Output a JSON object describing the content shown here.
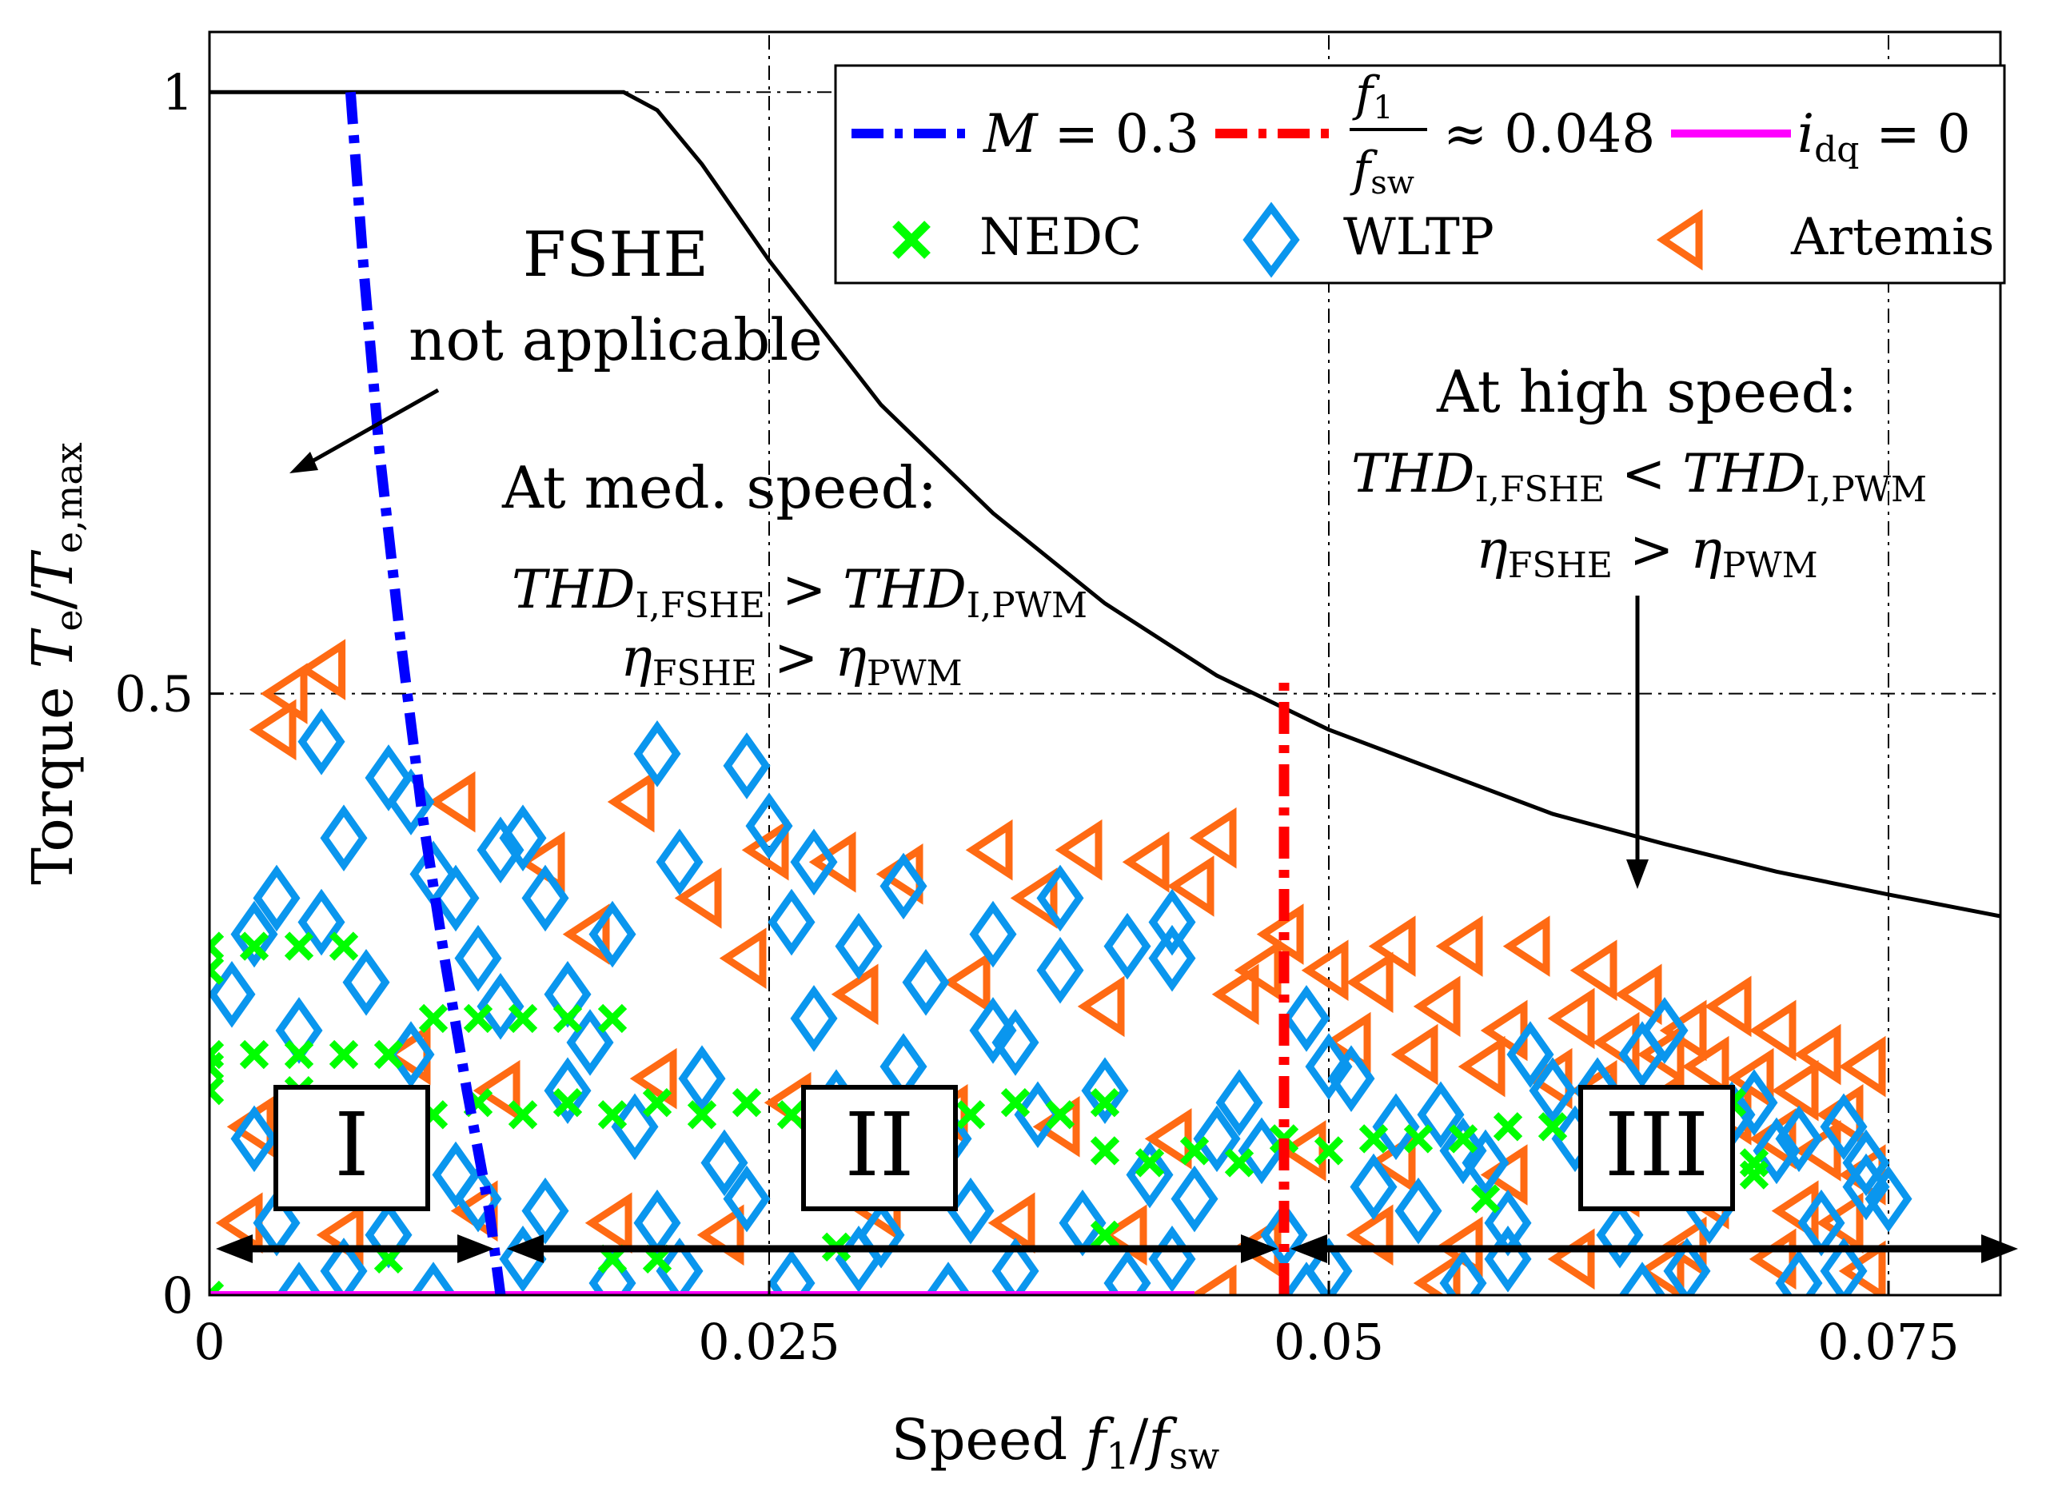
{
  "chart_data": {
    "type": "scatter",
    "xlabel_prefix": "Speed",
    "xlabel_symbol": "f",
    "xlabel_sub1": "1",
    "xlabel_slash": "/",
    "xlabel_sub2": "sw",
    "ylabel_prefix": "Torque",
    "ylabel_symbol_1": "T",
    "ylabel_sub_1": "e",
    "ylabel_slash": "/",
    "ylabel_symbol_2": "T",
    "ylabel_sub_2": "e,max",
    "xlim": [
      0,
      0.08
    ],
    "ylim": [
      0,
      1.05
    ],
    "xticks": [
      0,
      0.025,
      0.05,
      0.075
    ],
    "xtick_labels": [
      "0",
      "0.025",
      "0.05",
      "0.075"
    ],
    "yticks": [
      0,
      0.5,
      1
    ],
    "ytick_labels": [
      "0",
      "0.5",
      "1"
    ],
    "grid": true,
    "max_torque_curve": {
      "name": "max torque",
      "color": "#000000",
      "x": [
        0,
        0.005,
        0.01,
        0.015,
        0.0185,
        0.02,
        0.022,
        0.025,
        0.03,
        0.035,
        0.04,
        0.045,
        0.05,
        0.055,
        0.06,
        0.065,
        0.07,
        0.075,
        0.08
      ],
      "y": [
        1,
        1,
        1,
        1,
        1,
        0.985,
        0.94,
        0.86,
        0.74,
        0.65,
        0.575,
        0.515,
        0.47,
        0.435,
        0.4,
        0.375,
        0.352,
        0.333,
        0.315
      ]
    },
    "series": [
      {
        "name": "M = 0.3",
        "style": "dash-dot",
        "color": "#0000ff",
        "x": [
          0.0063,
          0.0069,
          0.0076,
          0.0085,
          0.0095,
          0.0105,
          0.0115,
          0.0125,
          0.013
        ],
        "y": [
          1.0,
          0.85,
          0.7,
          0.55,
          0.4,
          0.28,
          0.17,
          0.07,
          0.0
        ]
      },
      {
        "name": "f1/fsw ≈ 0.048",
        "style": "dash-dot",
        "color": "#ff0000",
        "x": [
          0.048,
          0.048
        ],
        "y": [
          0.0,
          0.51
        ]
      },
      {
        "name": "i_dq = 0",
        "style": "solid",
        "color": "#ff00ff",
        "x": [
          0.0,
          0.044
        ],
        "y": [
          0.0,
          0.0
        ]
      },
      {
        "name": "NEDC",
        "marker": "x",
        "color": "#00ff00",
        "x": [
          0.0,
          0.0,
          0.0,
          0.002,
          0.004,
          0.006,
          0.0,
          0.002,
          0.004,
          0.006,
          0.008,
          0.01,
          0.012,
          0.014,
          0.016,
          0.018,
          0.0,
          0.004,
          0.008,
          0.012,
          0.016,
          0.02,
          0.024,
          0.028,
          0.032,
          0.036,
          0.04,
          0.01,
          0.014,
          0.018,
          0.022,
          0.026,
          0.03,
          0.034,
          0.038,
          0.04,
          0.044,
          0.048,
          0.052,
          0.056,
          0.06,
          0.064,
          0.068,
          0.042,
          0.046,
          0.05,
          0.054,
          0.058,
          0.062,
          0.066,
          0.069,
          0.057,
          0.069,
          0.028,
          0.04,
          0.008,
          0.018,
          0.02,
          0.0
        ],
        "y": [
          0.29,
          0.27,
          0.19,
          0.29,
          0.29,
          0.29,
          0.2,
          0.2,
          0.2,
          0.2,
          0.2,
          0.23,
          0.23,
          0.23,
          0.23,
          0.23,
          0.17,
          0.17,
          0.16,
          0.16,
          0.16,
          0.16,
          0.16,
          0.16,
          0.16,
          0.16,
          0.16,
          0.15,
          0.15,
          0.15,
          0.15,
          0.15,
          0.15,
          0.15,
          0.15,
          0.12,
          0.12,
          0.13,
          0.13,
          0.13,
          0.14,
          0.15,
          0.16,
          0.11,
          0.11,
          0.12,
          0.13,
          0.14,
          0.14,
          0.15,
          0.1,
          0.08,
          0.11,
          0.04,
          0.05,
          0.03,
          0.03,
          0.03,
          0.0
        ]
      },
      {
        "name": "WLTP",
        "marker": "diamond",
        "color": "#0a96ee",
        "x": [
          0.005,
          0.008,
          0.006,
          0.009,
          0.01,
          0.013,
          0.014,
          0.011,
          0.02,
          0.024,
          0.025,
          0.003,
          0.002,
          0.005,
          0.007,
          0.012,
          0.015,
          0.018,
          0.021,
          0.026,
          0.029,
          0.032,
          0.035,
          0.038,
          0.041,
          0.043,
          0.046,
          0.049,
          0.05,
          0.053,
          0.056,
          0.059,
          0.062,
          0.065,
          0.068,
          0.071,
          0.074,
          0.001,
          0.004,
          0.009,
          0.013,
          0.017,
          0.022,
          0.027,
          0.031,
          0.036,
          0.04,
          0.045,
          0.051,
          0.055,
          0.06,
          0.064,
          0.069,
          0.073,
          0.002,
          0.007,
          0.011,
          0.016,
          0.019,
          0.023,
          0.028,
          0.033,
          0.037,
          0.042,
          0.047,
          0.052,
          0.057,
          0.061,
          0.066,
          0.07,
          0.075,
          0.003,
          0.008,
          0.012,
          0.015,
          0.02,
          0.024,
          0.03,
          0.034,
          0.039,
          0.044,
          0.048,
          0.054,
          0.058,
          0.063,
          0.067,
          0.072,
          0.074,
          0.006,
          0.014,
          0.021,
          0.029,
          0.036,
          0.043,
          0.05,
          0.058,
          0.066,
          0.073,
          0.004,
          0.01,
          0.018,
          0.026,
          0.033,
          0.041,
          0.049,
          0.056,
          0.064,
          0.071,
          0.043,
          0.031,
          0.027,
          0.016,
          0.038,
          0.035
        ],
        "y": [
          0.46,
          0.43,
          0.38,
          0.41,
          0.35,
          0.37,
          0.38,
          0.33,
          0.45,
          0.44,
          0.39,
          0.33,
          0.3,
          0.31,
          0.26,
          0.28,
          0.33,
          0.3,
          0.36,
          0.31,
          0.29,
          0.26,
          0.22,
          0.27,
          0.29,
          0.28,
          0.16,
          0.23,
          0.19,
          0.14,
          0.12,
          0.2,
          0.17,
          0.22,
          0.15,
          0.13,
          0.11,
          0.25,
          0.22,
          0.2,
          0.24,
          0.21,
          0.18,
          0.23,
          0.19,
          0.21,
          0.17,
          0.13,
          0.18,
          0.15,
          0.17,
          0.2,
          0.16,
          0.14,
          0.13,
          0.14,
          0.1,
          0.17,
          0.14,
          0.11,
          0.16,
          0.13,
          0.15,
          0.1,
          0.12,
          0.09,
          0.11,
          0.13,
          0.1,
          0.12,
          0.08,
          0.06,
          0.05,
          0.08,
          0.07,
          0.06,
          0.08,
          0.05,
          0.07,
          0.06,
          0.08,
          0.05,
          0.07,
          0.06,
          0.05,
          0.07,
          0.06,
          0.09,
          0.02,
          0.03,
          0.02,
          0.03,
          0.02,
          0.03,
          0.02,
          0.03,
          0.02,
          0.02,
          0.0,
          0.0,
          0.01,
          0.01,
          0.0,
          0.01,
          0.0,
          0.01,
          0.0,
          0.01,
          0.31,
          0.34,
          0.36,
          0.25,
          0.33,
          0.3
        ]
      },
      {
        "name": "Artemis",
        "marker": "triangle-left",
        "color": "#ff6a13",
        "x": [
          0.0035,
          0.0052,
          0.003,
          0.011,
          0.019,
          0.025,
          0.028,
          0.035,
          0.039,
          0.042,
          0.045,
          0.047,
          0.05,
          0.053,
          0.056,
          0.059,
          0.062,
          0.064,
          0.066,
          0.068,
          0.07,
          0.072,
          0.074,
          0.015,
          0.022,
          0.031,
          0.037,
          0.044,
          0.048,
          0.052,
          0.055,
          0.058,
          0.061,
          0.063,
          0.065,
          0.067,
          0.069,
          0.071,
          0.073,
          0.017,
          0.024,
          0.029,
          0.034,
          0.04,
          0.046,
          0.051,
          0.054,
          0.057,
          0.06,
          0.062,
          0.065,
          0.068,
          0.07,
          0.072,
          0.074,
          0.002,
          0.009,
          0.013,
          0.02,
          0.026,
          0.033,
          0.038,
          0.043,
          0.049,
          0.053,
          0.058,
          0.063,
          0.067,
          0.071,
          0.073,
          0.0015,
          0.006,
          0.012,
          0.018,
          0.023,
          0.03,
          0.036,
          0.041,
          0.047,
          0.052,
          0.056,
          0.061,
          0.066,
          0.07,
          0.074,
          0.045,
          0.055,
          0.065
        ],
        "y": [
          0.5,
          0.52,
          0.47,
          0.41,
          0.41,
          0.37,
          0.36,
          0.37,
          0.37,
          0.36,
          0.38,
          0.27,
          0.27,
          0.29,
          0.29,
          0.29,
          0.27,
          0.25,
          0.22,
          0.24,
          0.22,
          0.2,
          0.19,
          0.36,
          0.33,
          0.35,
          0.33,
          0.34,
          0.3,
          0.26,
          0.24,
          0.22,
          0.23,
          0.21,
          0.2,
          0.19,
          0.18,
          0.17,
          0.15,
          0.3,
          0.28,
          0.25,
          0.26,
          0.24,
          0.25,
          0.21,
          0.2,
          0.19,
          0.18,
          0.17,
          0.16,
          0.15,
          0.13,
          0.12,
          0.1,
          0.14,
          0.2,
          0.17,
          0.18,
          0.16,
          0.15,
          0.14,
          0.13,
          0.12,
          0.11,
          0.1,
          0.09,
          0.08,
          0.07,
          0.06,
          0.06,
          0.05,
          0.07,
          0.06,
          0.05,
          0.07,
          0.06,
          0.05,
          0.04,
          0.05,
          0.04,
          0.03,
          0.04,
          0.03,
          0.02,
          0.0,
          0.01,
          0.02
        ]
      }
    ],
    "legend": {
      "placement": "top-right",
      "row1": [
        {
          "series": "M = 0.3",
          "symbol": "M",
          "text": " = 0.3"
        },
        {
          "series": "f1/fsw ≈ 0.048",
          "num": "f",
          "num_sub": "1",
          "den": "f",
          "den_sub": "sw",
          "text": "≈ 0.048"
        },
        {
          "series": "i_dq = 0",
          "symbol": "i",
          "sub": "dq",
          "text": " = 0"
        }
      ],
      "row2": [
        {
          "series": "NEDC",
          "text": "NEDC"
        },
        {
          "series": "WLTP",
          "text": "WLTP"
        },
        {
          "series": "Artemis",
          "text": "Artemis"
        }
      ]
    },
    "annotations": {
      "fshe_title": "FSHE",
      "fshe_sub": "not applicable",
      "med_title": "At med. speed:",
      "med_thd": "THD",
      "med_thd_sub1": "I,FSHE",
      "med_op1": ">",
      "med_thd_sub2": "I,PWM",
      "med_eta": "η",
      "med_eta_sub1": "FSHE",
      "med_op2": ">",
      "med_eta_sub2": "PWM",
      "high_title": "At high speed:",
      "high_thd": "THD",
      "high_thd_sub1": "I,FSHE",
      "high_op1": "<",
      "high_thd_sub2": "I,PWM",
      "high_eta": "η",
      "high_eta_sub1": "FSHE",
      "high_op2": ">",
      "high_eta_sub2": "PWM"
    },
    "regions": [
      {
        "label": "I",
        "from": 0.0,
        "to": 0.013
      },
      {
        "label": "II",
        "from": 0.013,
        "to": 0.048
      },
      {
        "label": "III",
        "from": 0.048,
        "to": 0.08
      }
    ]
  }
}
